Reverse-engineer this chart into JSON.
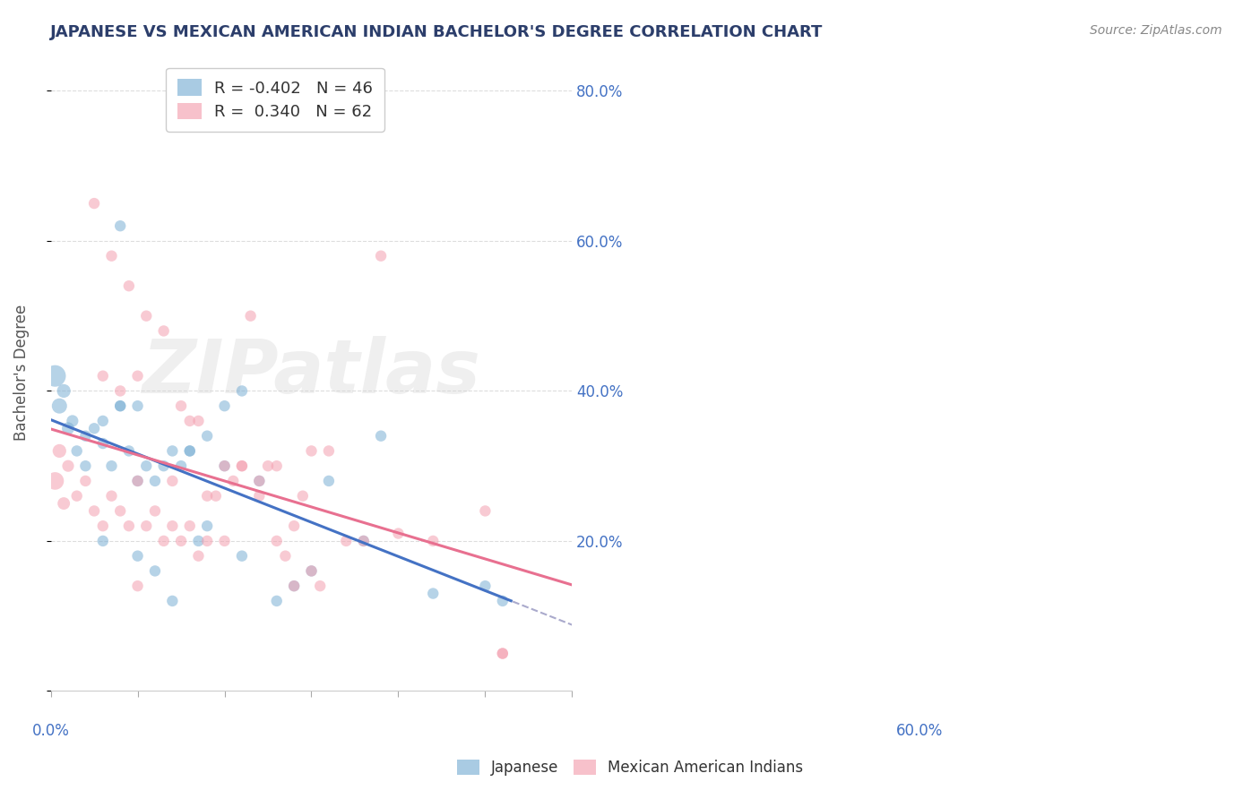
{
  "title": "JAPANESE VS MEXICAN AMERICAN INDIAN BACHELOR'S DEGREE CORRELATION CHART",
  "source": "Source: ZipAtlas.com",
  "ylabel": "Bachelor's Degree",
  "xmin": 0.0,
  "xmax": 0.6,
  "ymin": 0.0,
  "ymax": 0.85,
  "yticks": [
    0.0,
    0.2,
    0.4,
    0.6,
    0.8
  ],
  "ytick_labels": [
    "",
    "20.0%",
    "40.0%",
    "60.0%",
    "80.0%"
  ],
  "color_japanese": "#7bafd4",
  "color_mexican": "#f4a0b0",
  "color_trendline_j": "#4472c4",
  "color_trendline_m": "#e87090",
  "color_trendline_dash": "#aaaacc",
  "color_title": "#2c3e6b",
  "color_source": "#888888",
  "color_grid": "#dddddd",
  "color_right_tick": "#4472c4",
  "japanese_x": [
    0.005,
    0.01,
    0.015,
    0.02,
    0.025,
    0.03,
    0.04,
    0.05,
    0.06,
    0.07,
    0.08,
    0.09,
    0.1,
    0.11,
    0.12,
    0.13,
    0.14,
    0.15,
    0.16,
    0.17,
    0.18,
    0.2,
    0.22,
    0.24,
    0.26,
    0.28,
    0.3,
    0.32,
    0.38,
    0.44,
    0.1,
    0.12,
    0.14,
    0.16,
    0.18,
    0.2,
    0.22,
    0.08,
    0.06,
    0.04,
    0.5,
    0.52,
    0.06,
    0.08,
    0.1,
    0.36
  ],
  "japanese_y": [
    0.42,
    0.38,
    0.4,
    0.35,
    0.36,
    0.32,
    0.3,
    0.35,
    0.33,
    0.3,
    0.38,
    0.32,
    0.28,
    0.3,
    0.28,
    0.3,
    0.32,
    0.3,
    0.32,
    0.2,
    0.22,
    0.3,
    0.18,
    0.28,
    0.12,
    0.14,
    0.16,
    0.28,
    0.34,
    0.13,
    0.18,
    0.16,
    0.12,
    0.32,
    0.34,
    0.38,
    0.4,
    0.62,
    0.36,
    0.34,
    0.14,
    0.12,
    0.2,
    0.38,
    0.38,
    0.2
  ],
  "japanese_sizes": [
    300,
    150,
    120,
    100,
    90,
    80,
    80,
    80,
    80,
    80,
    80,
    80,
    80,
    80,
    80,
    80,
    80,
    80,
    80,
    80,
    80,
    80,
    80,
    80,
    80,
    80,
    80,
    80,
    80,
    80,
    80,
    80,
    80,
    80,
    80,
    80,
    80,
    80,
    80,
    80,
    80,
    80,
    80,
    80,
    80,
    80
  ],
  "mexican_x": [
    0.005,
    0.01,
    0.015,
    0.02,
    0.03,
    0.04,
    0.05,
    0.06,
    0.07,
    0.08,
    0.09,
    0.1,
    0.11,
    0.12,
    0.13,
    0.14,
    0.15,
    0.16,
    0.17,
    0.18,
    0.2,
    0.22,
    0.24,
    0.26,
    0.28,
    0.3,
    0.32,
    0.34,
    0.36,
    0.05,
    0.07,
    0.09,
    0.11,
    0.13,
    0.15,
    0.17,
    0.19,
    0.21,
    0.23,
    0.25,
    0.27,
    0.29,
    0.31,
    0.4,
    0.44,
    0.52,
    0.06,
    0.08,
    0.1,
    0.16,
    0.2,
    0.24,
    0.28,
    0.3,
    0.5,
    0.52,
    0.14,
    0.18,
    0.22,
    0.26,
    0.38,
    0.1
  ],
  "mexican_y": [
    0.28,
    0.32,
    0.25,
    0.3,
    0.26,
    0.28,
    0.24,
    0.22,
    0.26,
    0.24,
    0.22,
    0.28,
    0.22,
    0.24,
    0.2,
    0.22,
    0.2,
    0.22,
    0.18,
    0.2,
    0.2,
    0.3,
    0.28,
    0.3,
    0.22,
    0.32,
    0.32,
    0.2,
    0.2,
    0.65,
    0.58,
    0.54,
    0.5,
    0.48,
    0.38,
    0.36,
    0.26,
    0.28,
    0.5,
    0.3,
    0.18,
    0.26,
    0.14,
    0.21,
    0.2,
    0.05,
    0.42,
    0.4,
    0.42,
    0.36,
    0.3,
    0.26,
    0.14,
    0.16,
    0.24,
    0.05,
    0.28,
    0.26,
    0.3,
    0.2,
    0.58,
    0.14
  ],
  "mexican_sizes": [
    200,
    120,
    100,
    90,
    80,
    80,
    80,
    80,
    80,
    80,
    80,
    80,
    80,
    80,
    80,
    80,
    80,
    80,
    80,
    80,
    80,
    80,
    80,
    80,
    80,
    80,
    80,
    80,
    80,
    80,
    80,
    80,
    80,
    80,
    80,
    80,
    80,
    80,
    80,
    80,
    80,
    80,
    80,
    80,
    80,
    80,
    80,
    80,
    80,
    80,
    80,
    80,
    80,
    80,
    80,
    80,
    80,
    80,
    80,
    80,
    80,
    80
  ],
  "r_japanese": -0.402,
  "r_mexican": 0.34,
  "n_japanese": 46,
  "n_mexican": 62,
  "watermark": "ZIPatlas",
  "legend_label_j": "Japanese",
  "legend_label_m": "Mexican American Indians"
}
